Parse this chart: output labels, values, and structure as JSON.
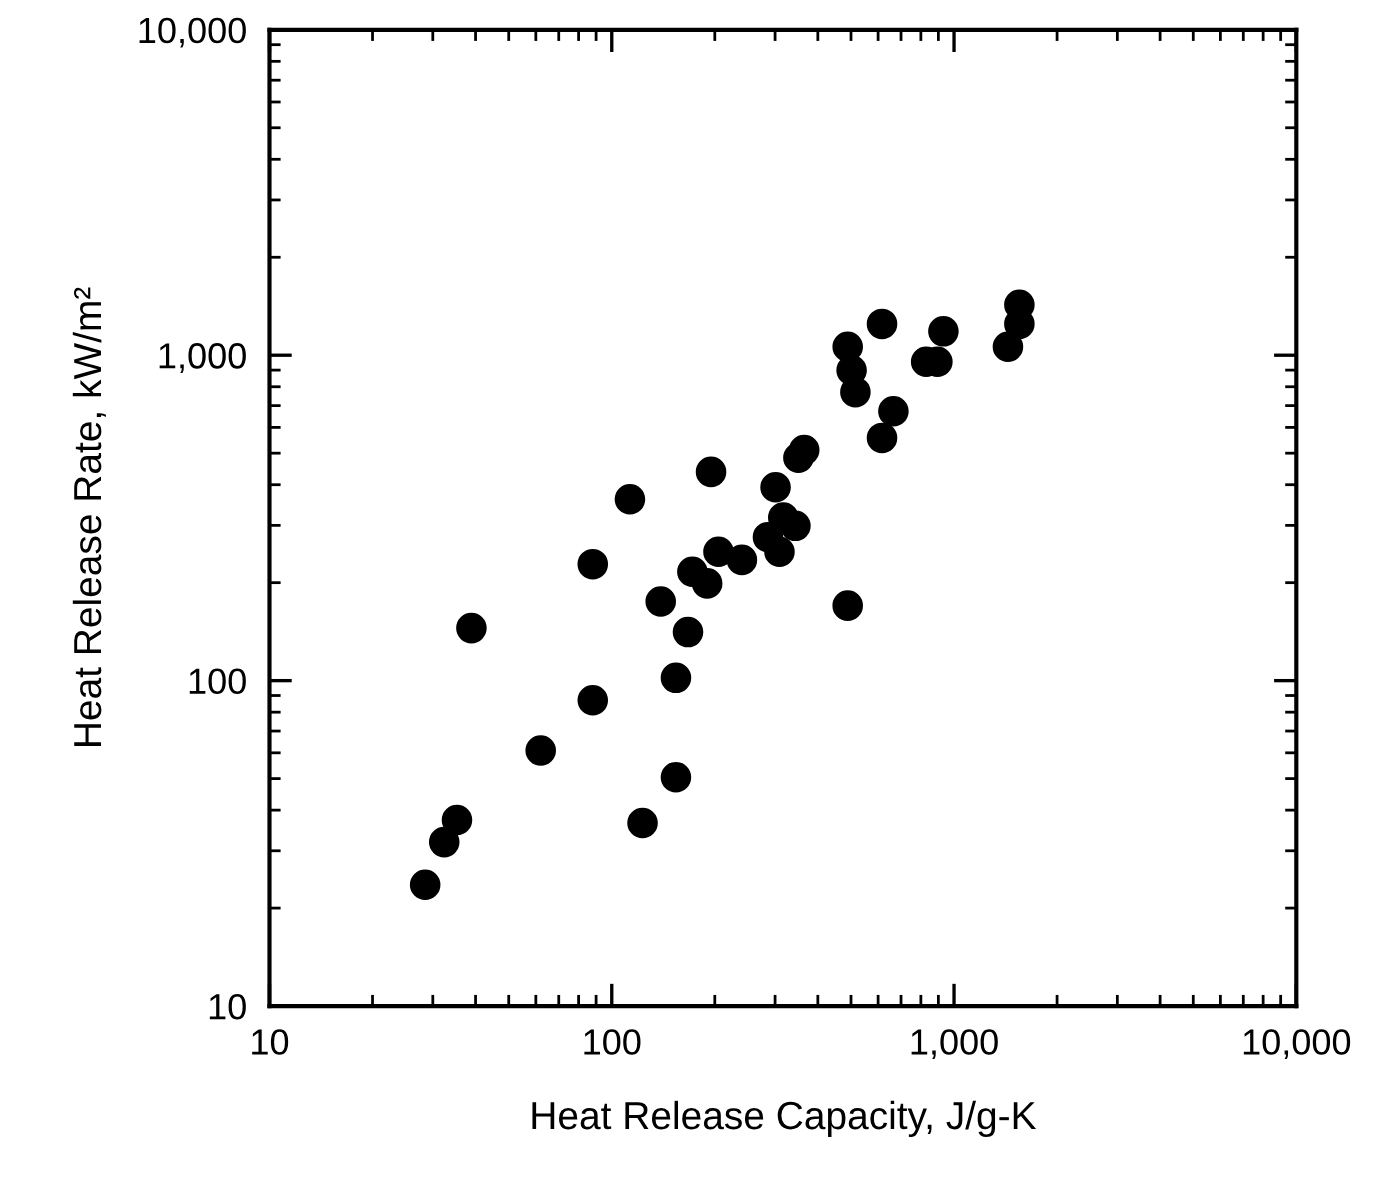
{
  "chart_data": {
    "type": "scatter",
    "xlabel": "Heat Release Capacity, J/g-K",
    "ylabel": "Heat Release Rate, kW/m²",
    "log": "xy",
    "grid": false,
    "marker": "circle",
    "xlim": [
      10,
      10000
    ],
    "ylim": [
      10,
      10000
    ],
    "xticks": [
      10,
      100,
      {
        "value": 1000,
        "label": "1,000"
      },
      {
        "value": 10000,
        "label": "10,000"
      }
    ],
    "yticks": [
      10,
      100,
      {
        "value": 1000,
        "label": "1,000"
      },
      {
        "value": 10000,
        "label": "10,000"
      }
    ],
    "series": [
      {
        "color": "#000000",
        "x": [
          28.5,
          32.4,
          35.3,
          38.9,
          62,
          88,
          88,
          113,
          123,
          139,
          154,
          154,
          167,
          172,
          190,
          195,
          205,
          240,
          286,
          301,
          309,
          317,
          344,
          351,
          365,
          489,
          489,
          502,
          515,
          616,
          616,
          665,
          829,
          894,
          931,
          1437,
          1552,
          1552
        ],
        "values": [
          23.6,
          31.9,
          37.3,
          145,
          61,
          87,
          228,
          361,
          36.5,
          175,
          102,
          50.5,
          141,
          216,
          199,
          438,
          249,
          235,
          276,
          393,
          249,
          317,
          299,
          484,
          511,
          170,
          1062,
          899,
          770,
          1248,
          557,
          673,
          955,
          955,
          1184,
          1062,
          1248,
          1429
        ]
      }
    ]
  }
}
